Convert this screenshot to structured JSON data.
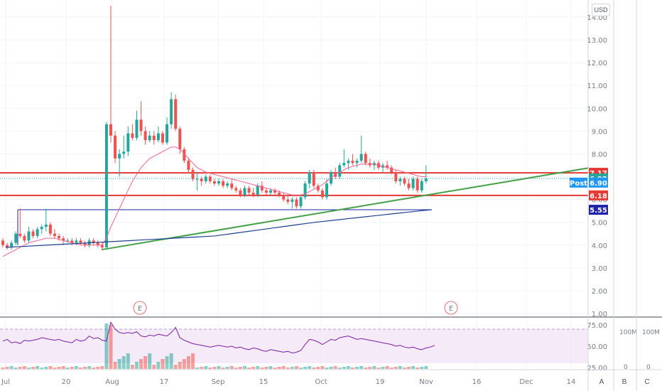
{
  "currency": "USD",
  "y_ticks": [
    "14.00",
    "13.00",
    "12.00",
    "11.00",
    "10.00",
    "9.00",
    "8.00",
    "7.00",
    "6.00",
    "5.00",
    "4.00",
    "3.00",
    "2.00",
    "1.00"
  ],
  "x_ticks": [
    "Jul",
    "20",
    "Aug",
    "17",
    "Sep",
    "15",
    "Oct",
    "19",
    "Nov",
    "16",
    "Dec",
    "14"
  ],
  "price_tags": [
    {
      "label": "7.17",
      "color": "#e53935"
    },
    {
      "label": "6.92",
      "color": "#26a69a"
    },
    {
      "label": "Post",
      "color": "#2196f3"
    },
    {
      "label": "6.90",
      "color": "#2196f3"
    },
    {
      "label": "6.18",
      "color": "#e53935"
    },
    {
      "label": "5.55",
      "color": "#1e22aa"
    }
  ],
  "event_markers": [
    "E",
    "E"
  ],
  "rsi": {
    "ticks": [
      "75.00",
      "50.00",
      "25.00"
    ],
    "band": [
      30,
      70
    ]
  },
  "volume_axis": [
    {
      "top": "100M",
      "bottom": "0"
    },
    {
      "top": "100M",
      "bottom": "0"
    }
  ],
  "corner_buttons": [
    "A",
    "B",
    "C"
  ],
  "colors": {
    "up": "#26a69a",
    "down": "#ef5350",
    "ma_short": "#f06292",
    "ma_long": "#1e3f8f",
    "trend": "#43a047",
    "hline": "#e53935",
    "support": "#1e22aa"
  },
  "chart_data": {
    "type": "candlestick",
    "series": [
      {
        "name": "price",
        "values": [
          [
            4.2,
            4.3,
            3.9,
            4.0
          ],
          [
            4.0,
            4.1,
            3.8,
            3.9
          ],
          [
            3.9,
            4.2,
            3.8,
            4.1
          ],
          [
            4.1,
            4.6,
            4.0,
            4.5
          ],
          [
            4.5,
            5.6,
            4.3,
            4.4
          ],
          [
            4.4,
            4.5,
            4.1,
            4.2
          ],
          [
            4.2,
            4.8,
            4.1,
            4.6
          ],
          [
            4.6,
            4.7,
            4.3,
            4.4
          ],
          [
            4.4,
            4.8,
            4.3,
            4.7
          ],
          [
            4.7,
            4.9,
            4.5,
            4.8
          ],
          [
            4.8,
            5.6,
            4.6,
            4.9
          ],
          [
            4.9,
            5.0,
            4.4,
            4.5
          ],
          [
            4.5,
            4.7,
            4.3,
            4.4
          ],
          [
            4.4,
            4.5,
            4.2,
            4.3
          ],
          [
            4.3,
            4.4,
            4.0,
            4.2
          ],
          [
            4.2,
            4.3,
            4.1,
            4.2
          ],
          [
            4.2,
            4.3,
            4.0,
            4.1
          ],
          [
            4.1,
            4.3,
            4.0,
            4.2
          ],
          [
            4.2,
            4.3,
            4.0,
            4.1
          ],
          [
            4.1,
            4.2,
            3.9,
            4.0
          ],
          [
            4.0,
            4.3,
            3.9,
            4.2
          ],
          [
            4.2,
            4.3,
            4.0,
            4.1
          ],
          [
            4.1,
            4.2,
            3.9,
            4.0
          ],
          [
            4.0,
            4.1,
            3.8,
            3.9
          ],
          [
            3.9,
            9.4,
            3.8,
            9.3
          ],
          [
            9.3,
            15.0,
            8.5,
            8.8
          ],
          [
            8.8,
            9.0,
            7.6,
            7.8
          ],
          [
            7.8,
            8.2,
            7.0,
            8.0
          ],
          [
            8.0,
            8.8,
            7.8,
            8.1
          ],
          [
            8.1,
            9.2,
            7.9,
            8.9
          ],
          [
            8.9,
            9.3,
            8.6,
            8.7
          ],
          [
            8.7,
            9.9,
            8.6,
            9.5
          ],
          [
            9.5,
            10.3,
            8.8,
            9.0
          ],
          [
            9.0,
            9.2,
            8.4,
            8.6
          ],
          [
            8.6,
            9.0,
            8.5,
            8.8
          ],
          [
            8.8,
            9.0,
            8.4,
            8.6
          ],
          [
            8.6,
            9.2,
            8.5,
            8.9
          ],
          [
            8.9,
            9.0,
            8.4,
            8.5
          ],
          [
            8.5,
            9.6,
            8.4,
            9.3
          ],
          [
            9.3,
            10.7,
            9.1,
            10.4
          ],
          [
            10.4,
            10.6,
            9.0,
            9.1
          ],
          [
            9.1,
            9.2,
            8.0,
            8.2
          ],
          [
            8.2,
            8.3,
            7.6,
            7.7
          ],
          [
            7.7,
            7.8,
            7.2,
            7.3
          ],
          [
            7.3,
            7.4,
            6.8,
            6.9
          ],
          [
            6.9,
            7.2,
            6.4,
            6.9
          ],
          [
            6.9,
            7.0,
            6.6,
            6.8
          ],
          [
            6.8,
            7.1,
            6.7,
            7.0
          ],
          [
            7.0,
            7.1,
            6.7,
            6.8
          ],
          [
            6.8,
            6.9,
            6.6,
            6.7
          ],
          [
            6.7,
            6.9,
            6.6,
            6.8
          ],
          [
            6.8,
            6.9,
            6.5,
            6.6
          ],
          [
            6.6,
            6.8,
            6.5,
            6.7
          ],
          [
            6.7,
            6.9,
            6.4,
            6.5
          ],
          [
            6.5,
            6.6,
            6.3,
            6.4
          ],
          [
            6.4,
            6.5,
            6.1,
            6.2
          ],
          [
            6.2,
            6.6,
            6.1,
            6.5
          ],
          [
            6.5,
            6.6,
            6.2,
            6.3
          ],
          [
            6.3,
            6.5,
            6.1,
            6.2
          ],
          [
            6.2,
            6.7,
            6.1,
            6.6
          ],
          [
            6.6,
            6.8,
            6.3,
            6.4
          ],
          [
            6.4,
            6.5,
            6.2,
            6.3
          ],
          [
            6.3,
            6.5,
            6.2,
            6.4
          ],
          [
            6.4,
            6.5,
            6.2,
            6.3
          ],
          [
            6.3,
            6.4,
            6.1,
            6.2
          ],
          [
            6.2,
            6.3,
            5.9,
            6.0
          ],
          [
            6.0,
            6.2,
            5.8,
            5.9
          ],
          [
            5.9,
            6.1,
            5.6,
            6.0
          ],
          [
            6.0,
            6.1,
            5.6,
            5.7
          ],
          [
            5.7,
            6.2,
            5.6,
            6.1
          ],
          [
            6.1,
            6.8,
            6.0,
            6.7
          ],
          [
            6.7,
            7.3,
            6.5,
            7.2
          ],
          [
            7.2,
            7.3,
            6.5,
            6.6
          ],
          [
            6.6,
            6.7,
            6.3,
            6.4
          ],
          [
            6.4,
            6.5,
            6.0,
            6.1
          ],
          [
            6.1,
            6.9,
            6.0,
            6.7
          ],
          [
            6.7,
            7.3,
            6.6,
            7.2
          ],
          [
            7.2,
            7.4,
            6.9,
            7.0
          ],
          [
            7.0,
            7.6,
            6.9,
            7.5
          ],
          [
            7.5,
            8.2,
            7.4,
            7.6
          ],
          [
            7.6,
            7.8,
            7.3,
            7.7
          ],
          [
            7.7,
            8.0,
            7.5,
            7.6
          ],
          [
            7.6,
            7.8,
            7.4,
            7.7
          ],
          [
            7.7,
            8.8,
            7.6,
            8.0
          ],
          [
            8.0,
            8.1,
            7.5,
            7.6
          ],
          [
            7.6,
            7.8,
            7.4,
            7.5
          ],
          [
            7.5,
            7.7,
            7.3,
            7.6
          ],
          [
            7.6,
            7.7,
            7.3,
            7.4
          ],
          [
            7.4,
            7.6,
            7.2,
            7.5
          ],
          [
            7.5,
            7.7,
            7.3,
            7.4
          ],
          [
            7.4,
            7.5,
            7.1,
            7.2
          ],
          [
            7.2,
            7.3,
            6.7,
            6.8
          ],
          [
            6.8,
            7.0,
            6.6,
            6.9
          ],
          [
            6.9,
            7.0,
            6.6,
            6.7
          ],
          [
            6.7,
            6.9,
            6.4,
            6.5
          ],
          [
            6.5,
            7.0,
            6.4,
            6.9
          ],
          [
            6.9,
            7.0,
            6.3,
            6.4
          ],
          [
            6.4,
            6.9,
            6.3,
            6.8
          ],
          [
            6.8,
            7.5,
            6.7,
            6.92
          ]
        ]
      },
      {
        "name": "ma_short",
        "values": [
          3.5,
          3.6,
          3.7,
          3.8,
          3.9,
          4.0,
          4.1,
          4.15,
          4.2,
          4.25,
          4.3,
          4.3,
          4.3,
          4.25,
          4.2,
          4.15,
          4.1,
          4.05,
          4.0,
          4.0,
          4.0,
          4.0,
          4.0,
          4.0,
          4.3,
          4.8,
          5.2,
          5.6,
          6.0,
          6.4,
          6.8,
          7.1,
          7.4,
          7.6,
          7.8,
          7.9,
          8.0,
          8.1,
          8.2,
          8.3,
          8.3,
          8.2,
          8.0,
          7.8,
          7.6,
          7.4,
          7.3,
          7.2,
          7.15,
          7.1,
          7.05,
          7.0,
          6.95,
          6.9,
          6.85,
          6.8,
          6.75,
          6.7,
          6.65,
          6.6,
          6.55,
          6.5,
          6.45,
          6.4,
          6.35,
          6.3,
          6.25,
          6.2,
          6.2,
          6.2,
          6.25,
          6.35,
          6.45,
          6.55,
          6.65,
          6.8,
          6.95,
          7.1,
          7.2,
          7.3,
          7.4,
          7.45,
          7.5,
          7.55,
          7.55,
          7.55,
          7.55,
          7.5,
          7.45,
          7.4,
          7.35,
          7.3,
          7.25,
          7.2,
          7.15,
          7.1,
          7.05,
          7.0,
          7.0
        ]
      },
      {
        "name": "ma_long",
        "values": [
          3.9,
          3.92,
          3.94,
          3.96,
          3.98,
          4.0,
          4.02,
          4.04,
          4.06,
          4.08,
          4.1,
          4.12,
          4.14,
          4.16,
          4.18,
          4.2,
          4.22,
          4.24,
          4.26,
          4.28,
          4.3,
          4.32,
          4.34,
          4.36,
          4.38,
          4.4,
          4.45,
          4.5,
          4.55,
          4.6,
          4.65,
          4.7,
          4.75,
          4.8,
          4.85,
          4.9,
          4.95,
          5.0,
          5.04,
          5.08,
          5.12,
          5.16,
          5.2,
          5.24,
          5.28,
          5.32,
          5.36,
          5.4,
          5.44,
          5.48,
          5.52,
          5.55
        ]
      },
      {
        "name": "rsi",
        "values": [
          56,
          58,
          54,
          55,
          53,
          57,
          56,
          57,
          58,
          60,
          59,
          58,
          57,
          58,
          56,
          55,
          54,
          58,
          56,
          57,
          62,
          59,
          60,
          57,
          56,
          78,
          70,
          66,
          65,
          66,
          65,
          67,
          62,
          61,
          63,
          62,
          64,
          63,
          62,
          66,
          72,
          60,
          57,
          55,
          53,
          52,
          51,
          50,
          49,
          50,
          51,
          50,
          49,
          50,
          48,
          49,
          47,
          46,
          48,
          47,
          45,
          44,
          46,
          45,
          44,
          43,
          44,
          42,
          43,
          45,
          52,
          58,
          57,
          55,
          52,
          55,
          58,
          57,
          60,
          61,
          62,
          60,
          58,
          59,
          58,
          57,
          56,
          55,
          54,
          53,
          52,
          50,
          51,
          49,
          48,
          49,
          47,
          46,
          48,
          49,
          51
        ]
      }
    ],
    "ylim": [
      1,
      14.5
    ],
    "annotations": [
      "7.17",
      "6.92",
      "Post",
      "6.90",
      "6.18",
      "5.55"
    ]
  }
}
